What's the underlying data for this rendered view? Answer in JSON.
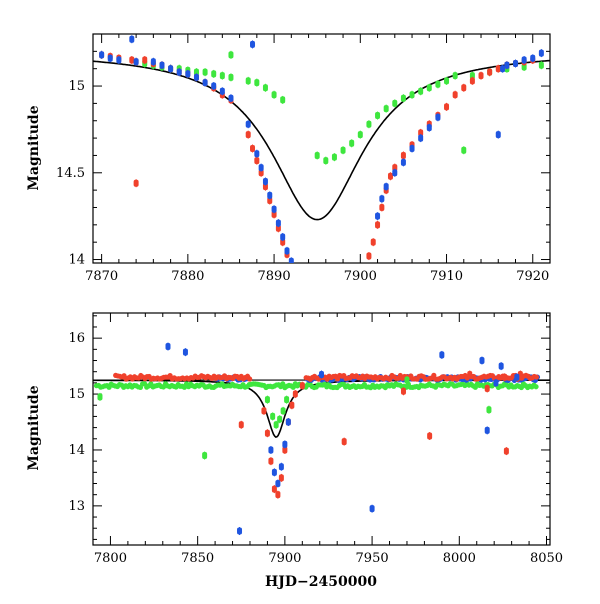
{
  "chart_data": [
    {
      "type": "scatter",
      "title": "",
      "xlabel": "",
      "ylabel": "Magnitude",
      "xlim": [
        7869,
        7922
      ],
      "ylim": [
        15.3,
        13.98
      ],
      "y_inverted": true,
      "xticks": [
        7870,
        7880,
        7890,
        7900,
        7910,
        7920
      ],
      "yticks": [
        14,
        14.5,
        15
      ],
      "ytick_labels": [
        "14",
        "14.5",
        "15"
      ],
      "colors": {
        "red": "#f0412c",
        "blue": "#1f55e0",
        "green": "#3ee63e",
        "model": "#000000"
      },
      "series": [
        {
          "color": "red",
          "points": [
            [
              7870,
              15.18
            ],
            [
              7871,
              15.17
            ],
            [
              7872,
              15.16
            ],
            [
              7873.5,
              15.15
            ],
            [
              7874,
              15.14
            ],
            [
              7875,
              15.15
            ],
            [
              7876,
              15.13
            ],
            [
              7877,
              15.12
            ],
            [
              7878,
              15.1
            ],
            [
              7879,
              15.08
            ],
            [
              7880,
              15.07
            ],
            [
              7881,
              15.05
            ],
            [
              7882,
              15.02
            ],
            [
              7883,
              14.99
            ],
            [
              7884,
              14.95
            ],
            [
              7885,
              14.92
            ],
            [
              7887,
              14.72
            ],
            [
              7887.5,
              14.64
            ],
            [
              7888,
              14.57
            ],
            [
              7888.5,
              14.5
            ],
            [
              7889,
              14.42
            ],
            [
              7889.5,
              14.34
            ],
            [
              7890,
              14.26
            ],
            [
              7890.5,
              14.18
            ],
            [
              7891,
              14.1
            ],
            [
              7891.5,
              14.03
            ],
            [
              7901,
              14.02
            ],
            [
              7901.5,
              14.1
            ],
            [
              7902,
              14.2
            ],
            [
              7902.5,
              14.3
            ],
            [
              7903,
              14.4
            ],
            [
              7903.5,
              14.48
            ],
            [
              7904,
              14.53
            ],
            [
              7905,
              14.6
            ],
            [
              7906,
              14.66
            ],
            [
              7907,
              14.73
            ],
            [
              7908,
              14.78
            ],
            [
              7909,
              14.83
            ],
            [
              7910,
              14.88
            ],
            [
              7911,
              14.95
            ],
            [
              7912,
              14.99
            ],
            [
              7913,
              15.03
            ],
            [
              7914,
              15.06
            ],
            [
              7915,
              15.08
            ],
            [
              7916,
              15.1
            ],
            [
              7917,
              15.12
            ],
            [
              7918,
              15.13
            ],
            [
              7919,
              15.14
            ],
            [
              7920,
              15.15
            ],
            [
              7874,
              14.44
            ]
          ]
        },
        {
          "color": "blue",
          "points": [
            [
              7870,
              15.18
            ],
            [
              7871,
              15.16
            ],
            [
              7872,
              15.15
            ],
            [
              7873.5,
              15.27
            ],
            [
              7874,
              15.14
            ],
            [
              7876,
              15.14
            ],
            [
              7877,
              15.12
            ],
            [
              7878,
              15.1
            ],
            [
              7879,
              15.08
            ],
            [
              7880,
              15.07
            ],
            [
              7881,
              15.05
            ],
            [
              7882,
              15.02
            ],
            [
              7883,
              15.0
            ],
            [
              7884,
              14.97
            ],
            [
              7885,
              14.93
            ],
            [
              7887,
              14.78
            ],
            [
              7887.5,
              15.24
            ],
            [
              7888,
              14.61
            ],
            [
              7888.5,
              14.53
            ],
            [
              7889,
              14.45
            ],
            [
              7889.5,
              14.37
            ],
            [
              7890,
              14.29
            ],
            [
              7890.5,
              14.21
            ],
            [
              7891,
              14.13
            ],
            [
              7891.5,
              14.05
            ],
            [
              7892,
              13.99
            ],
            [
              7902,
              14.25
            ],
            [
              7902.5,
              14.35
            ],
            [
              7903,
              14.42
            ],
            [
              7904,
              14.5
            ],
            [
              7905,
              14.56
            ],
            [
              7906,
              14.64
            ],
            [
              7907,
              14.7
            ],
            [
              7908,
              14.76
            ],
            [
              7909,
              14.82
            ],
            [
              7916,
              14.72
            ],
            [
              7916.5,
              15.1
            ],
            [
              7917,
              15.12
            ],
            [
              7918,
              15.13
            ],
            [
              7919,
              15.15
            ],
            [
              7920,
              15.16
            ],
            [
              7921,
              15.19
            ]
          ]
        },
        {
          "color": "green",
          "points": [
            [
              7875,
              15.13
            ],
            [
              7876,
              15.12
            ],
            [
              7877,
              15.11
            ],
            [
              7878,
              15.1
            ],
            [
              7879,
              15.1
            ],
            [
              7880,
              15.09
            ],
            [
              7881,
              15.08
            ],
            [
              7882,
              15.08
            ],
            [
              7883,
              15.07
            ],
            [
              7884,
              15.06
            ],
            [
              7885,
              15.05
            ],
            [
              7885,
              15.18
            ],
            [
              7887,
              15.03
            ],
            [
              7888,
              15.02
            ],
            [
              7889,
              14.99
            ],
            [
              7890,
              14.95
            ],
            [
              7891,
              14.92
            ],
            [
              7895,
              14.6
            ],
            [
              7896,
              14.57
            ],
            [
              7897,
              14.59
            ],
            [
              7898,
              14.63
            ],
            [
              7899,
              14.67
            ],
            [
              7900,
              14.72
            ],
            [
              7901,
              14.78
            ],
            [
              7902,
              14.83
            ],
            [
              7903,
              14.87
            ],
            [
              7904,
              14.9
            ],
            [
              7905,
              14.93
            ],
            [
              7906,
              14.95
            ],
            [
              7907,
              14.97
            ],
            [
              7908,
              14.99
            ],
            [
              7909,
              15.01
            ],
            [
              7910,
              15.03
            ],
            [
              7911,
              15.06
            ],
            [
              7912,
              14.63
            ],
            [
              7913,
              15.06
            ],
            [
              7915,
              15.08
            ],
            [
              7917,
              15.1
            ],
            [
              7919,
              15.11
            ],
            [
              7921,
              15.12
            ]
          ]
        }
      ],
      "model_curve": {
        "type": "lorentzian",
        "baseline": 15.2,
        "peak": 14.23,
        "center": 7895,
        "width": 6.5
      }
    },
    {
      "type": "scatter",
      "title": "",
      "xlabel": "HJD−2450000",
      "ylabel": "Magnitude",
      "xlim": [
        7790,
        8052
      ],
      "ylim": [
        16.45,
        12.3
      ],
      "y_inverted": true,
      "xticks": [
        7800,
        7850,
        7900,
        7950,
        8000,
        8050
      ],
      "yticks": [
        13,
        14,
        15,
        16
      ],
      "ytick_labels": [
        "13",
        "14",
        "15",
        "16"
      ],
      "hline": 15.25,
      "colors": {
        "red": "#f0412c",
        "blue": "#1f55e0",
        "green": "#3ee63e",
        "model": "#000000"
      },
      "series": [
        {
          "color": "red",
          "points": [
            [
              7875,
              14.45
            ],
            [
              7934,
              14.15
            ],
            [
              7983,
              14.25
            ],
            [
              8027,
              13.98
            ],
            [
              8016,
              15.1
            ],
            [
              8026,
              15.3
            ],
            [
              8035,
              15.35
            ],
            [
              8006,
              15.35
            ],
            [
              7968,
              15.05
            ],
            [
              7888,
              14.7
            ],
            [
              7890,
              14.3
            ],
            [
              7892,
              13.8
            ],
            [
              7894,
              13.3
            ],
            [
              7896,
              13.2
            ],
            [
              7898,
              13.5
            ],
            [
              7900,
              14.0
            ],
            [
              7902,
              14.5
            ],
            [
              7904,
              14.8
            ],
            [
              7906,
              15.0
            ],
            [
              7910,
              15.15
            ]
          ]
        },
        {
          "color": "blue",
          "points": [
            [
              7833,
              15.85
            ],
            [
              7843,
              15.75
            ],
            [
              7874,
              12.55
            ],
            [
              7950,
              12.95
            ],
            [
              7921,
              15.35
            ],
            [
              7990,
              15.7
            ],
            [
              8016,
              14.35
            ],
            [
              8021,
              15.2
            ],
            [
              8024,
              15.5
            ],
            [
              8013,
              15.6
            ],
            [
              8033,
              15.3
            ],
            [
              7892,
              14.0
            ],
            [
              7894,
              13.6
            ],
            [
              7896,
              13.4
            ],
            [
              7898,
              13.7
            ],
            [
              7900,
              14.1
            ],
            [
              7902,
              14.5
            ]
          ]
        },
        {
          "color": "green",
          "points": [
            [
              7794,
              14.95
            ],
            [
              7854,
              13.9
            ],
            [
              7890,
              14.9
            ],
            [
              7893,
              14.6
            ],
            [
              7895,
              14.45
            ],
            [
              7897,
              14.55
            ],
            [
              7899,
              14.7
            ],
            [
              7901,
              14.9
            ],
            [
              8017,
              14.72
            ],
            [
              7970,
              15.25
            ]
          ]
        }
      ],
      "baseline_series": {
        "red": {
          "mag": 15.3,
          "x_from": 7803,
          "x_to": 8045
        },
        "green": {
          "mag": 15.15,
          "x_from": 7792,
          "x_to": 8045
        },
        "blue": {
          "mag": 15.28,
          "x_from": 7860,
          "x_to": 8045
        }
      },
      "model_curve": {
        "type": "lorentzian",
        "baseline": 15.25,
        "peak": 14.23,
        "center": 7895,
        "width": 6.5
      }
    }
  ]
}
